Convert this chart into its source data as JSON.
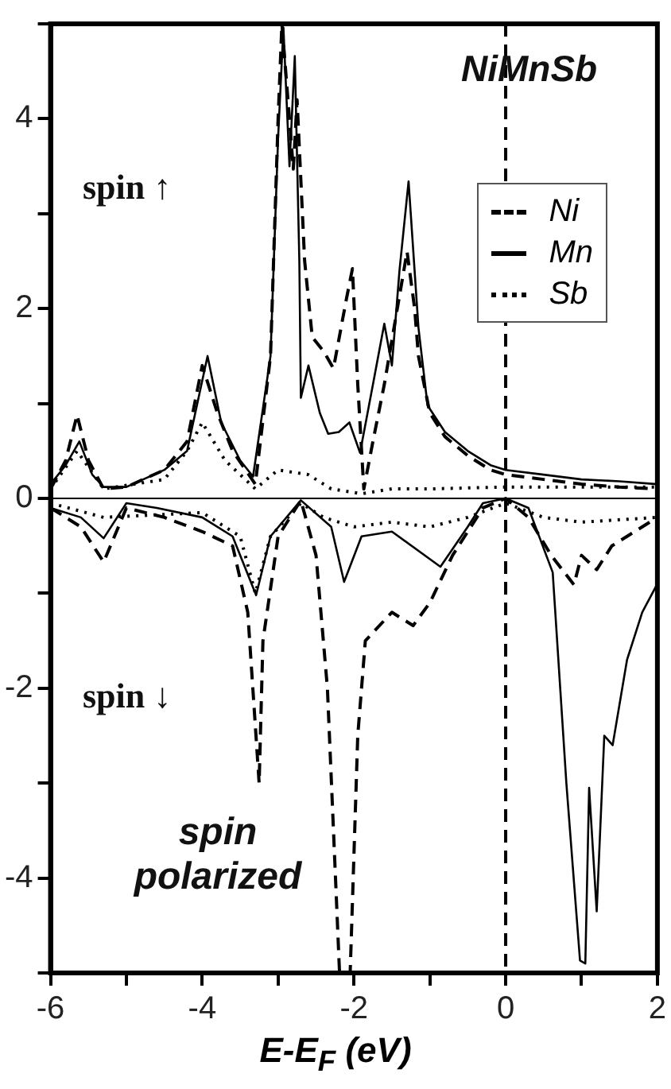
{
  "chart_data": {
    "type": "line",
    "xlabel": "E-E$_{F}$ (eV)",
    "xlim": [
      -6,
      2
    ],
    "ylim": [
      -5,
      5
    ],
    "xticks": [
      -6,
      {
        "value": -5,
        "label": null
      },
      -4,
      {
        "value": -3,
        "label": null
      },
      -2,
      {
        "value": -1,
        "label": null
      },
      0,
      {
        "value": 1,
        "label": null
      },
      2
    ],
    "yticks": [
      {
        "value": -5,
        "label": null
      },
      -4,
      {
        "value": -3,
        "label": null
      },
      -2,
      {
        "value": -1,
        "label": null
      },
      0,
      {
        "value": 1,
        "label": null
      },
      2,
      {
        "value": 3,
        "label": null
      },
      4,
      {
        "value": 5,
        "label": null
      }
    ],
    "legend": "top right",
    "marker": "none",
    "annotations": [
      "NiMnSb",
      "spin ↑",
      "spin ↓",
      "spin polarized"
    ],
    "ref_lines": [
      {
        "axis": "x",
        "value": 0,
        "line_style": "dashed",
        "color": "#000000"
      },
      {
        "axis": "y",
        "value": 0,
        "line_style": "solid",
        "color": "#000000"
      }
    ],
    "series": [
      {
        "name": "Ni",
        "color": "#000000",
        "line_style": "dashed",
        "x": [
          -6,
          -5.8,
          -5.65,
          -5.5,
          -5.3,
          -5,
          -4.5,
          -4.2,
          -4,
          -3.8,
          -3.6,
          -3.3,
          -3.1,
          -3.0,
          -2.95,
          -2.85,
          -2.8,
          -2.75,
          -2.65,
          -2.55,
          -2.4,
          -2.27,
          -2.1,
          -2.02,
          -1.95,
          -1.87,
          -1.75,
          -1.6,
          -1.45,
          -1.3,
          -1.2,
          -1.15,
          -1.0,
          -0.8,
          -0.5,
          -0.2,
          0,
          0.5,
          1,
          1.5,
          2
        ],
        "values": [
          0.1,
          0.4,
          0.88,
          0.4,
          0.1,
          0.12,
          0.3,
          0.6,
          1.4,
          0.9,
          0.5,
          0.15,
          1.5,
          4.0,
          5.0,
          4.0,
          3.47,
          4.2,
          2.5,
          1.7,
          1.55,
          1.37,
          2.1,
          2.42,
          1.2,
          0.1,
          0.6,
          1.2,
          1.9,
          2.6,
          2.0,
          1.5,
          0.9,
          0.65,
          0.45,
          0.3,
          0.25,
          0.2,
          0.15,
          0.12,
          0.1
        ]
      },
      {
        "name": "Mn",
        "color": "#000000",
        "line_style": "solid",
        "x": [
          -6,
          -5.8,
          -5.62,
          -5.45,
          -5.3,
          -5,
          -4.5,
          -4.2,
          -3.93,
          -3.75,
          -3.5,
          -3.33,
          -3.1,
          -3.0,
          -2.93,
          -2.85,
          -2.78,
          -2.72,
          -2.7,
          -2.6,
          -2.45,
          -2.34,
          -2.2,
          -2.06,
          -1.92,
          -1.75,
          -1.6,
          -1.5,
          -1.4,
          -1.28,
          -1.15,
          -1.03,
          -0.8,
          -0.5,
          -0.2,
          0,
          0.5,
          1,
          1.5,
          2
        ],
        "values": [
          0.15,
          0.35,
          0.6,
          0.25,
          0.12,
          0.12,
          0.3,
          0.5,
          1.5,
          0.8,
          0.4,
          0.23,
          1.5,
          3.8,
          4.96,
          3.5,
          4.66,
          2.5,
          1.06,
          1.4,
          0.9,
          0.68,
          0.7,
          0.8,
          0.48,
          1.2,
          1.84,
          1.4,
          2.4,
          3.34,
          1.8,
          0.98,
          0.7,
          0.5,
          0.35,
          0.3,
          0.25,
          0.2,
          0.18,
          0.15
        ]
      },
      {
        "name": "Sb",
        "color": "#000000",
        "line_style": "dotted",
        "x": [
          -6,
          -5.65,
          -5.3,
          -4.5,
          -4.2,
          -4,
          -3.7,
          -3.3,
          -3.0,
          -2.6,
          -2.3,
          -1.9,
          -1.5,
          -1,
          0,
          1,
          2
        ],
        "values": [
          0.1,
          0.5,
          0.1,
          0.2,
          0.5,
          0.8,
          0.4,
          0.1,
          0.3,
          0.25,
          0.1,
          0.05,
          0.1,
          0.1,
          0.12,
          0.12,
          0.12
        ]
      },
      {
        "color": "#000000",
        "line_style": "dashed",
        "x": [
          -6,
          -5.6,
          -5.3,
          -5,
          -4.5,
          -4,
          -3.6,
          -3.4,
          -3.25,
          -3.2,
          -3.0,
          -2.7,
          -2.5,
          -2.35,
          -2.19,
          -2.05,
          -1.95,
          -1.85,
          -1.5,
          -1.22,
          -1,
          -0.7,
          -0.3,
          0,
          0.3,
          0.6,
          0.9,
          1.0,
          1.2,
          1.4,
          1.6,
          2
        ],
        "values": [
          -0.1,
          -0.3,
          -0.67,
          -0.1,
          -0.2,
          -0.35,
          -0.5,
          -1.2,
          -3.0,
          -1.5,
          -0.4,
          -0.02,
          -0.6,
          -2.0,
          -5,
          -5,
          -2.5,
          -1.5,
          -1.2,
          -1.34,
          -1.1,
          -0.6,
          -0.1,
          0,
          -0.2,
          -0.6,
          -0.91,
          -0.6,
          -0.75,
          -0.5,
          -0.4,
          -0.2
        ]
      },
      {
        "color": "#000000",
        "line_style": "solid",
        "x": [
          -6,
          -5.6,
          -5.3,
          -5,
          -4.6,
          -4,
          -3.6,
          -3.29,
          -3.1,
          -2.7,
          -2.3,
          -2.13,
          -1.9,
          -1.5,
          -0.86,
          -0.5,
          -0.3,
          0,
          0.3,
          0.62,
          0.8,
          0.98,
          1.05,
          1.1,
          1.2,
          1.3,
          1.41,
          1.6,
          1.8,
          2
        ],
        "values": [
          -0.1,
          -0.2,
          -0.42,
          -0.05,
          -0.1,
          -0.2,
          -0.4,
          -1.02,
          -0.4,
          -0.02,
          -0.3,
          -0.88,
          -0.4,
          -0.35,
          -0.72,
          -0.3,
          -0.05,
          0,
          -0.1,
          -0.78,
          -3.0,
          -4.87,
          -4.9,
          -3.05,
          -4.35,
          -2.5,
          -2.6,
          -1.7,
          -1.2,
          -0.9
        ]
      },
      {
        "color": "#000000",
        "line_style": "dotted",
        "x": [
          -6,
          -5.3,
          -4,
          -3.5,
          -3.3,
          -3.1,
          -2.7,
          -2.4,
          -2.0,
          -1.5,
          -1.0,
          -0.5,
          0,
          0.5,
          1.0,
          2
        ],
        "values": [
          -0.05,
          -0.2,
          -0.15,
          -0.4,
          -1.0,
          -0.4,
          -0.05,
          -0.2,
          -0.3,
          -0.25,
          -0.3,
          -0.2,
          -0.05,
          -0.2,
          -0.25,
          -0.2
        ]
      }
    ]
  }
}
